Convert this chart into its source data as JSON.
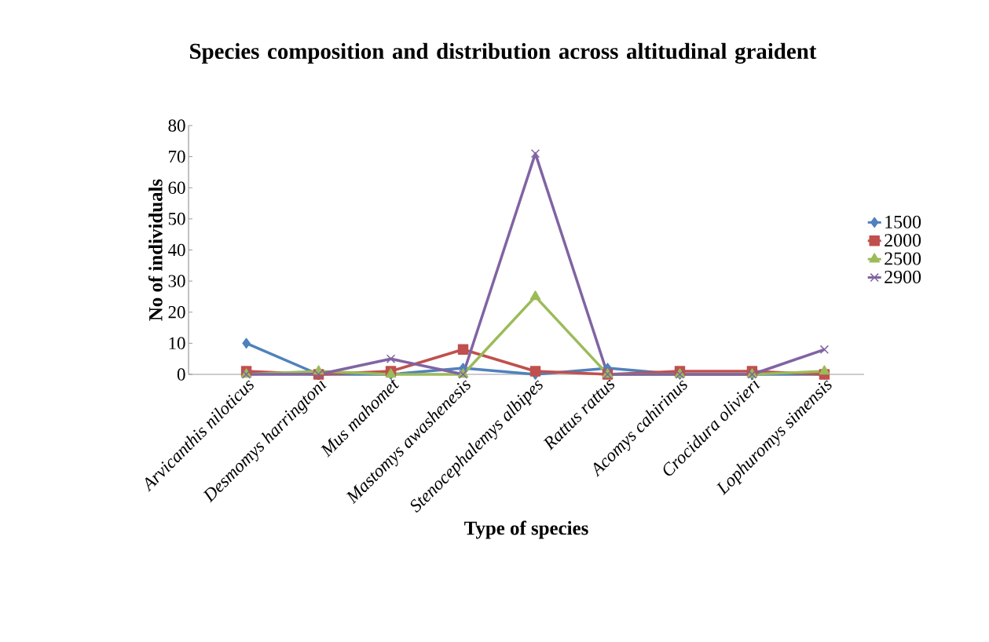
{
  "chart_data": {
    "type": "line",
    "title": "Species composition and distribution across altitudinal graident",
    "xlabel": "Type of species",
    "ylabel": "No of individuals",
    "categories": [
      "*Arvicanthis niloticus*",
      "*Desmomys harringtoni*",
      "*Mus mahomet*",
      "*Mastomys awashenesis*",
      "*Stenocephalemys albipes*",
      "*Rattus rattus*",
      "*Acomys cahirinus*",
      "*Crocidura olivieri*",
      "*Lophuromys simensis*"
    ],
    "series": [
      {
        "name": "1500",
        "color": "#4f81bd",
        "marker": "diamond",
        "values": [
          10,
          0,
          0,
          2,
          0,
          2,
          0,
          0,
          0
        ]
      },
      {
        "name": "2000",
        "color": "#c0504d",
        "marker": "square",
        "values": [
          1,
          0,
          1,
          8,
          1,
          0,
          1,
          1,
          0
        ]
      },
      {
        "name": "2500",
        "color": "#9bbb59",
        "marker": "triangle",
        "values": [
          0,
          1,
          0,
          0,
          25,
          0,
          0,
          0,
          1
        ]
      },
      {
        "name": "2900",
        "color": "#8064a2",
        "marker": "cross",
        "values": [
          0,
          0,
          5,
          0,
          71,
          0,
          0,
          0,
          8
        ]
      }
    ],
    "ylim": [
      0,
      80
    ],
    "yticks": [
      0,
      10,
      20,
      30,
      40,
      50,
      60,
      70,
      80
    ],
    "grid": false,
    "legend": "right"
  }
}
